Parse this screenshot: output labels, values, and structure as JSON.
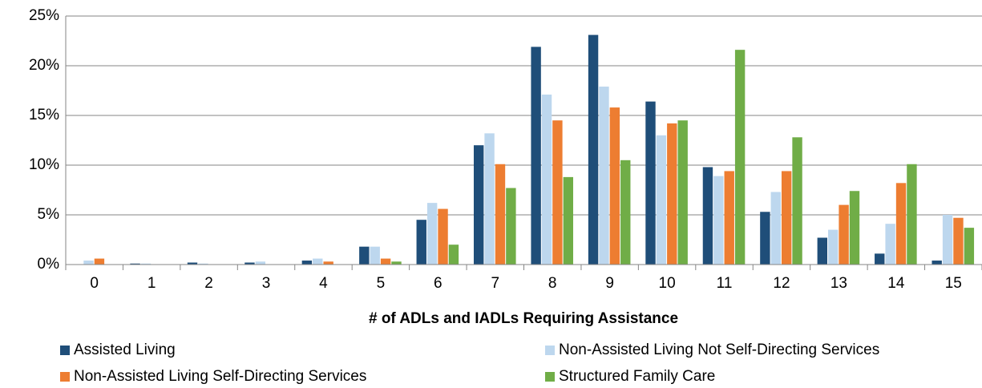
{
  "chart_data": {
    "type": "bar",
    "x_label": "# of ADLs and IADLs Requiring Assistance",
    "categories": [
      "0",
      "1",
      "2",
      "3",
      "4",
      "5",
      "6",
      "7",
      "8",
      "9",
      "10",
      "11",
      "12",
      "13",
      "14",
      "15"
    ],
    "series": [
      {
        "name": "Assisted Living",
        "color": "#1f4e79",
        "values": [
          0,
          0.1,
          0.2,
          0.2,
          0.4,
          1.8,
          4.5,
          12.0,
          21.9,
          23.1,
          16.4,
          9.8,
          5.3,
          2.7,
          1.1,
          0.4
        ]
      },
      {
        "name": "Non-Assisted Living Not Self-Directing Services",
        "color": "#bdd7ee",
        "values": [
          0.4,
          0.1,
          0.1,
          0.3,
          0.6,
          1.8,
          6.2,
          13.2,
          17.1,
          17.9,
          13.0,
          8.9,
          7.3,
          3.5,
          4.1,
          5.0
        ]
      },
      {
        "name": "Non-Assisted Living Self-Directing Services",
        "color": "#ed7d31",
        "values": [
          0.6,
          0,
          0,
          0,
          0.3,
          0.6,
          5.6,
          10.1,
          14.5,
          15.8,
          14.2,
          9.4,
          9.4,
          6.0,
          8.2,
          4.7
        ]
      },
      {
        "name": "Structured Family Care",
        "color": "#70ad47",
        "values": [
          0,
          0,
          0,
          0,
          0,
          0.3,
          2.0,
          7.7,
          8.8,
          10.5,
          14.5,
          21.6,
          12.8,
          7.4,
          10.1,
          3.7
        ]
      }
    ],
    "ylim": [
      0,
      25
    ],
    "yticks": [
      {
        "value": 0,
        "label": "0%"
      },
      {
        "value": 5,
        "label": "5%"
      },
      {
        "value": 10,
        "label": "10%"
      },
      {
        "value": 15,
        "label": "15%"
      },
      {
        "value": 20,
        "label": "20%"
      },
      {
        "value": 25,
        "label": "25%"
      }
    ],
    "grid": true,
    "legend": "bottom"
  }
}
